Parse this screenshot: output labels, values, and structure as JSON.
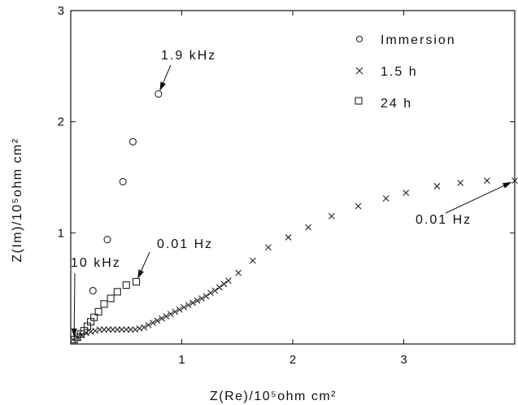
{
  "chart_data": {
    "type": "scatter",
    "xlabel": "Z(Re)/10⁵ohm cm²",
    "ylabel": "Z(Im)/10⁵ohm cm²",
    "xlim": [
      0,
      4
    ],
    "ylim": [
      0,
      3
    ],
    "xticks": [
      1,
      2,
      3
    ],
    "yticks": [
      1,
      2,
      3
    ],
    "grid": false,
    "legend_position": "top-right",
    "series": [
      {
        "name": "Immersion",
        "marker": "circle",
        "points": [
          [
            0.2,
            0.48
          ],
          [
            0.33,
            0.94
          ],
          [
            0.47,
            1.46
          ],
          [
            0.56,
            1.82
          ],
          [
            0.79,
            2.25
          ]
        ]
      },
      {
        "name": "1.5 h",
        "marker": "x",
        "points": [
          [
            0.02,
            0.04
          ],
          [
            0.06,
            0.06
          ],
          [
            0.1,
            0.08
          ],
          [
            0.14,
            0.1
          ],
          [
            0.18,
            0.11
          ],
          [
            0.22,
            0.12
          ],
          [
            0.26,
            0.13
          ],
          [
            0.3,
            0.13
          ],
          [
            0.34,
            0.13
          ],
          [
            0.38,
            0.13
          ],
          [
            0.42,
            0.13
          ],
          [
            0.46,
            0.13
          ],
          [
            0.5,
            0.13
          ],
          [
            0.54,
            0.13
          ],
          [
            0.58,
            0.13
          ],
          [
            0.62,
            0.14
          ],
          [
            0.66,
            0.15
          ],
          [
            0.7,
            0.17
          ],
          [
            0.74,
            0.19
          ],
          [
            0.78,
            0.21
          ],
          [
            0.82,
            0.23
          ],
          [
            0.86,
            0.25
          ],
          [
            0.9,
            0.27
          ],
          [
            0.94,
            0.29
          ],
          [
            0.98,
            0.31
          ],
          [
            1.02,
            0.33
          ],
          [
            1.06,
            0.35
          ],
          [
            1.1,
            0.37
          ],
          [
            1.14,
            0.39
          ],
          [
            1.18,
            0.41
          ],
          [
            1.22,
            0.43
          ],
          [
            1.26,
            0.46
          ],
          [
            1.3,
            0.48
          ],
          [
            1.34,
            0.51
          ],
          [
            1.38,
            0.54
          ],
          [
            1.42,
            0.57
          ],
          [
            1.51,
            0.64
          ],
          [
            1.64,
            0.75
          ],
          [
            1.78,
            0.87
          ],
          [
            1.96,
            0.96
          ],
          [
            2.14,
            1.05
          ],
          [
            2.35,
            1.15
          ],
          [
            2.59,
            1.24
          ],
          [
            2.84,
            1.31
          ],
          [
            3.02,
            1.36
          ],
          [
            3.3,
            1.42
          ],
          [
            3.51,
            1.45
          ],
          [
            3.75,
            1.47
          ],
          [
            4.0,
            1.47
          ]
        ]
      },
      {
        "name": "24 h",
        "marker": "square",
        "points": [
          [
            0.03,
            0.04
          ],
          [
            0.06,
            0.06
          ],
          [
            0.09,
            0.09
          ],
          [
            0.12,
            0.12
          ],
          [
            0.15,
            0.16
          ],
          [
            0.18,
            0.2
          ],
          [
            0.21,
            0.24
          ],
          [
            0.25,
            0.29
          ],
          [
            0.3,
            0.36
          ],
          [
            0.36,
            0.41
          ],
          [
            0.42,
            0.47
          ],
          [
            0.5,
            0.53
          ],
          [
            0.59,
            0.56
          ]
        ]
      }
    ],
    "annotations": [
      {
        "text": "1.9 kHz",
        "target": [
          0.79,
          2.25
        ]
      },
      {
        "text": "10 kHz",
        "target": [
          0.03,
          0.03
        ]
      },
      {
        "text": "0.01 Hz",
        "target": [
          0.59,
          0.56
        ]
      },
      {
        "text": "0.01 Hz",
        "target": [
          4.0,
          1.47
        ]
      }
    ]
  },
  "legend": [
    {
      "label": "Immersion",
      "marker": "circle"
    },
    {
      "label": "1.5 h",
      "marker": "x"
    },
    {
      "label": "24 h",
      "marker": "square"
    }
  ]
}
